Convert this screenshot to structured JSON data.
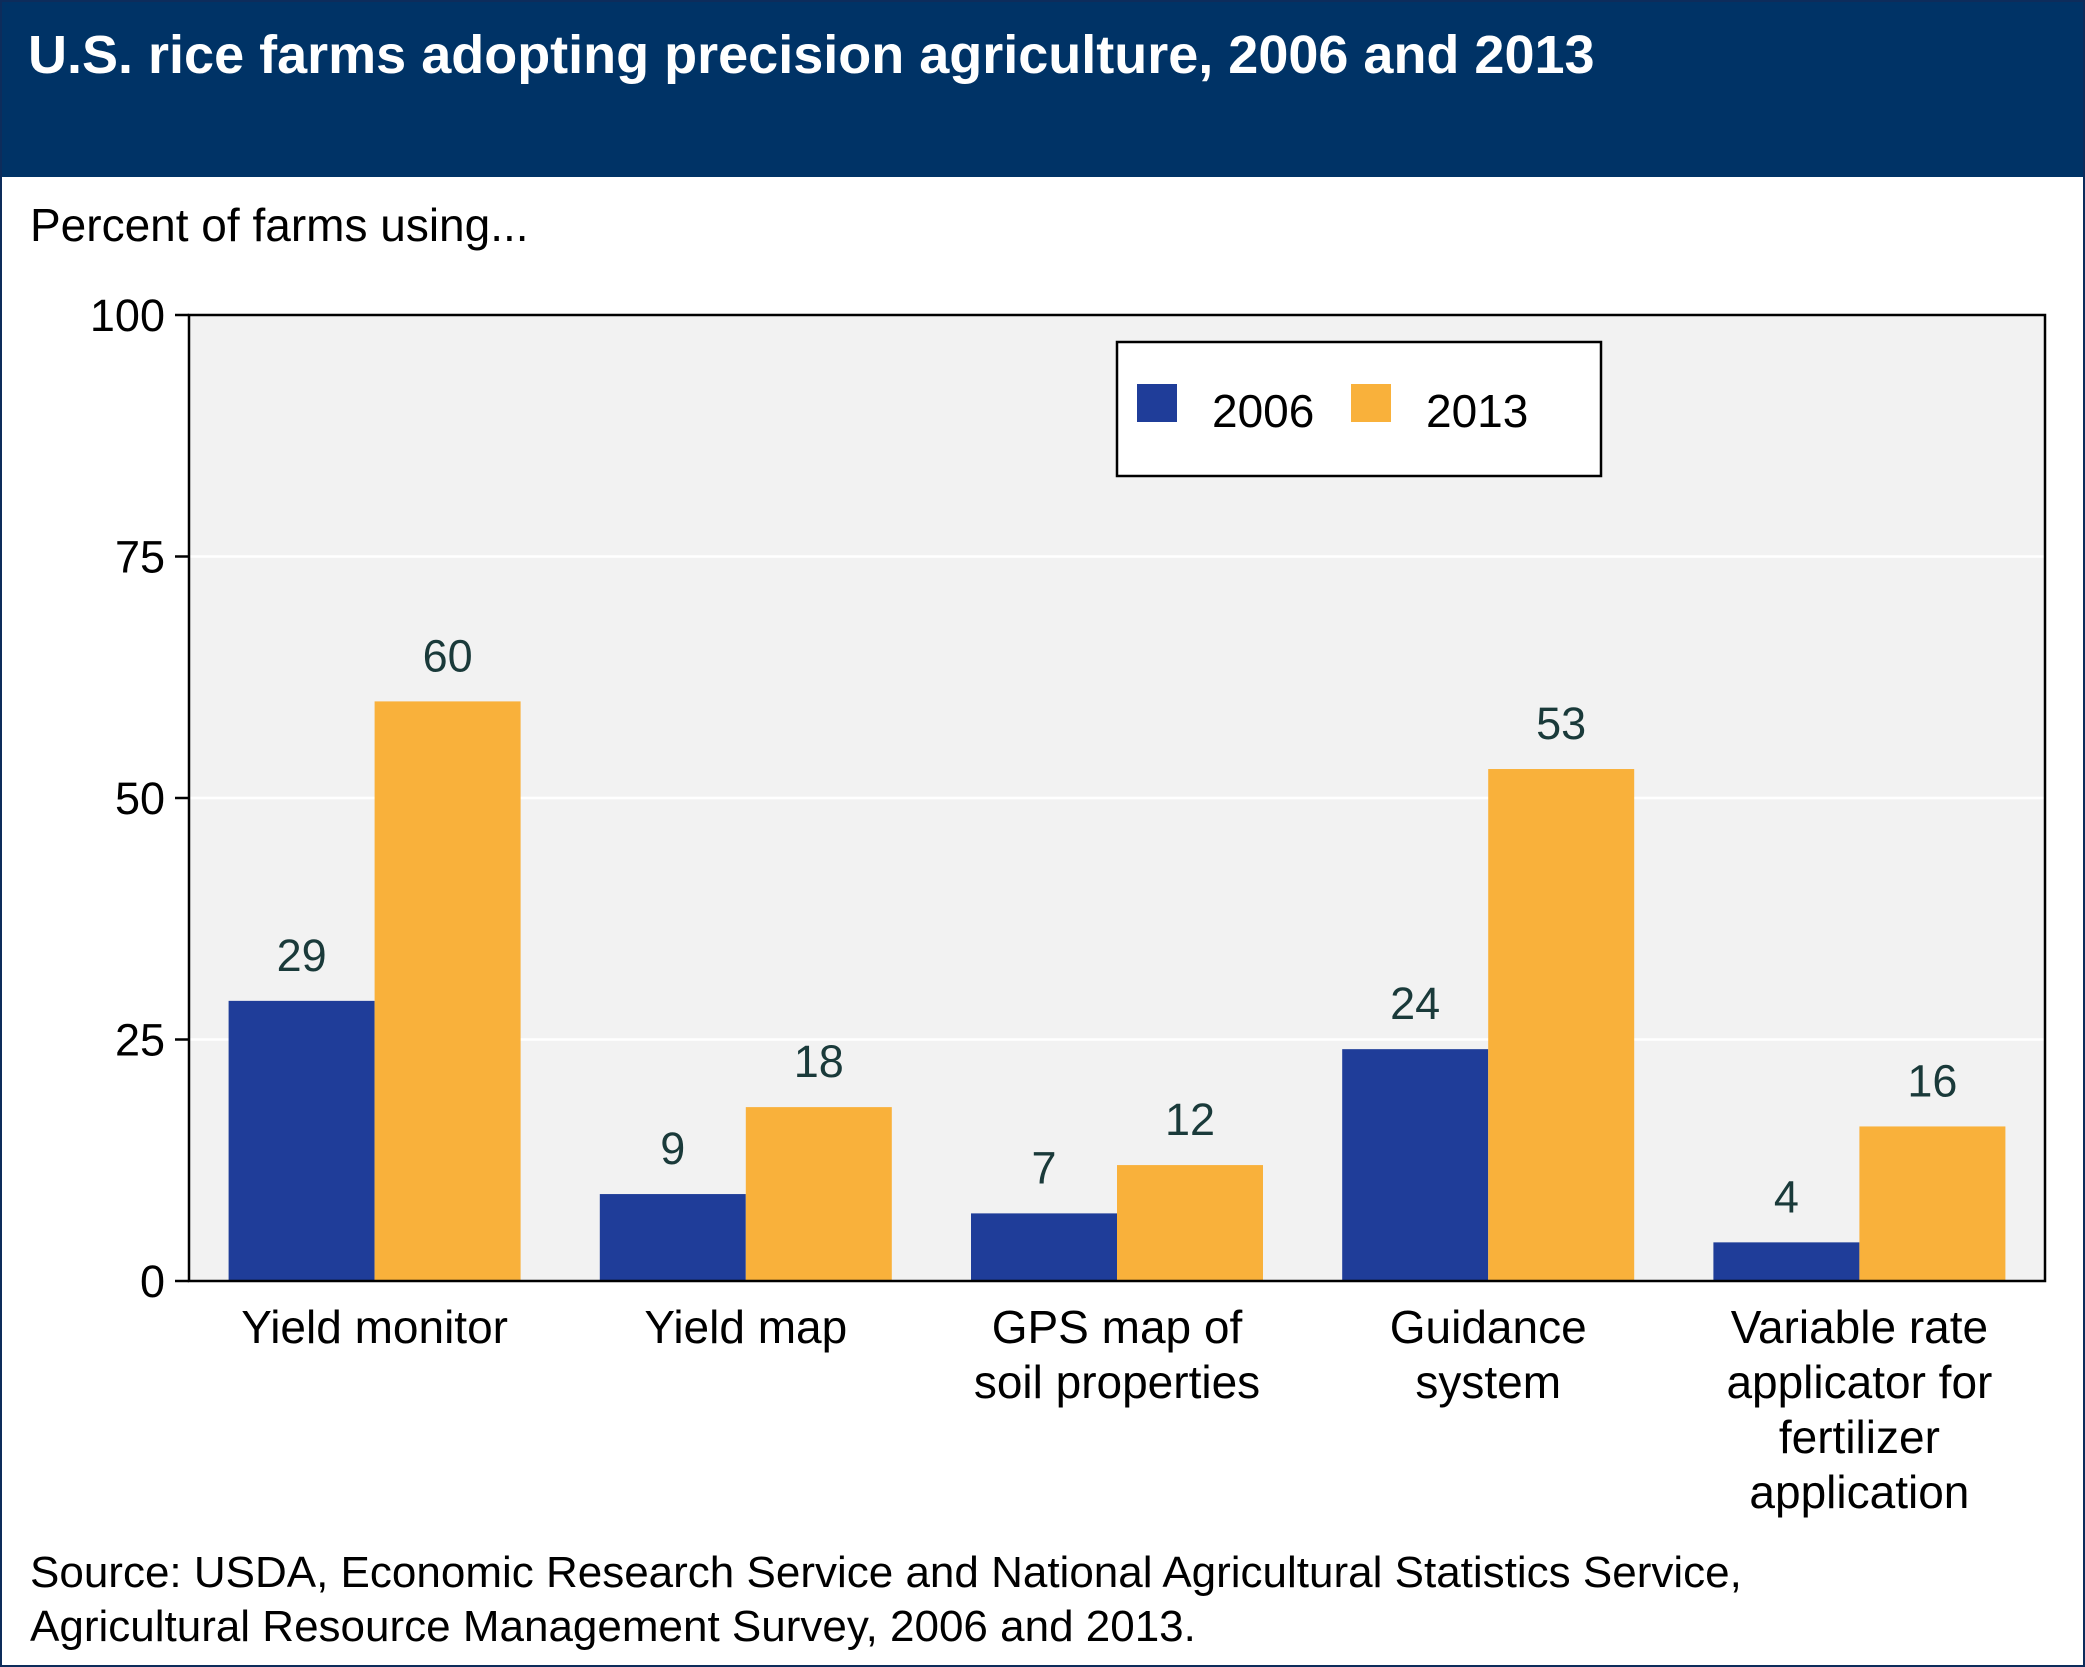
{
  "header": {
    "title": "U.S. rice farms adopting precision agriculture, 2006 and 2013",
    "subtitle": "Percent of farms using..."
  },
  "footer": {
    "source_line1": "Source: USDA, Economic Research Service and National Agricultural Statistics Service,",
    "source_line2": "Agricultural Resource Management Survey, 2006 and 2013."
  },
  "colors": {
    "header_bg": "#003366",
    "plot_bg": "#f2f2f2",
    "series_2006": "#1f3d99",
    "series_2013": "#f9b13b",
    "data_label": "#1a3a3a"
  },
  "chart_data": {
    "type": "bar",
    "ylabel": "Percent of farms using...",
    "ylim": [
      0,
      100
    ],
    "yticks": [
      0,
      25,
      50,
      75,
      100
    ],
    "grid": true,
    "legend_position": "top-right",
    "categories": [
      [
        "Yield monitor"
      ],
      [
        "Yield map"
      ],
      [
        "GPS map of",
        "soil properties"
      ],
      [
        "Guidance",
        "system"
      ],
      [
        "Variable rate",
        "applicator for",
        "fertilizer",
        "application"
      ]
    ],
    "series": [
      {
        "name": "2006",
        "color": "#1f3d99",
        "values": [
          29,
          9,
          7,
          24,
          4
        ]
      },
      {
        "name": "2013",
        "color": "#f9b13b",
        "values": [
          60,
          18,
          12,
          53,
          16
        ]
      }
    ]
  }
}
